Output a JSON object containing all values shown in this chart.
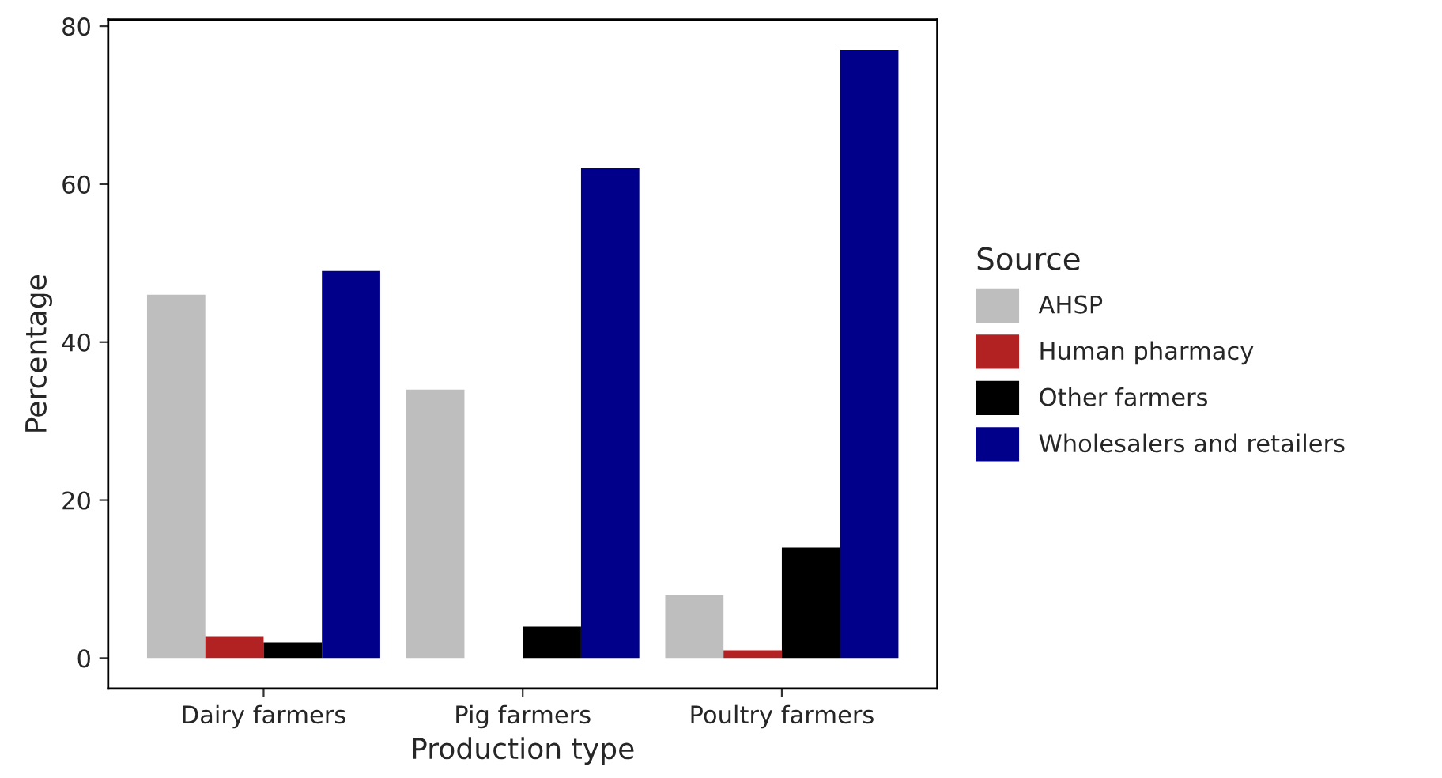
{
  "chart_data": {
    "type": "bar",
    "xlabel": "Production type",
    "ylabel": "Percentage",
    "legend_title": "Source",
    "categories": [
      "Dairy farmers",
      "Pig farmers",
      "Poultry farmers"
    ],
    "series": [
      {
        "name": "AHSP",
        "color": "#bebebe",
        "values": [
          46,
          34,
          8
        ]
      },
      {
        "name": "Human pharmacy",
        "color": "#b22222",
        "values": [
          2.7,
          null,
          1
        ]
      },
      {
        "name": "Other farmers",
        "color": "#000000",
        "values": [
          2,
          4,
          14
        ]
      },
      {
        "name": "Wholesalers and retailers",
        "color": "#00008b",
        "values": [
          49,
          62,
          77
        ]
      }
    ],
    "ylim": [
      -3.85,
      80.85
    ],
    "yticks": [
      0,
      20,
      40,
      60,
      80
    ],
    "grid": false,
    "legend": "right"
  }
}
